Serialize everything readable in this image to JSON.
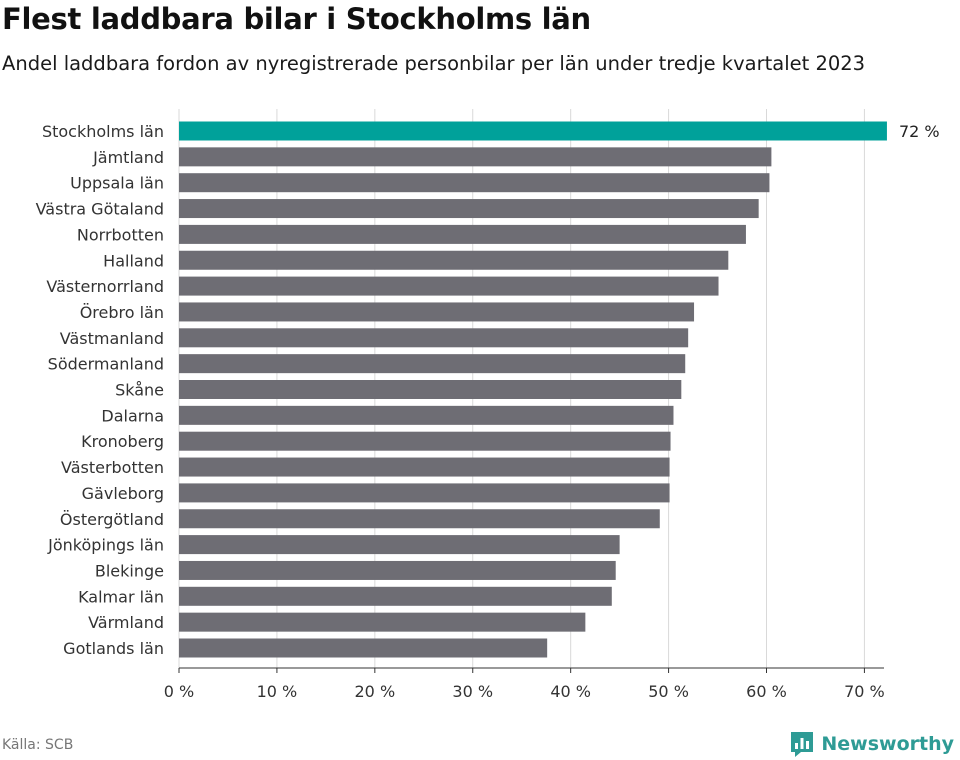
{
  "title": "Flest laddbara bilar i Stockholms län",
  "subtitle": "Andel laddbara fordon av nyregistrerade personbilar per län under tredje kvartalet 2023",
  "source": "Källa: SCB",
  "brand": "Newsworthy",
  "colors": {
    "highlight": "#00a19a",
    "bar": "#6e6d74",
    "grid": "#d9d9d9",
    "brand": "#2e9b95"
  },
  "chart_data": {
    "type": "bar",
    "orientation": "horizontal",
    "title": "Flest laddbara bilar i Stockholms län",
    "xlabel": "",
    "ylabel": "",
    "xlim": [
      0,
      72
    ],
    "ticks": [
      0,
      10,
      20,
      30,
      40,
      50,
      60,
      70
    ],
    "tick_labels": [
      "0 %",
      "10 %",
      "20 %",
      "30 %",
      "40 %",
      "50 %",
      "60 %",
      "70 %"
    ],
    "grid": true,
    "categories": [
      "Stockholms län",
      "Jämtland",
      "Uppsala län",
      "Västra Götaland",
      "Norrbotten",
      "Halland",
      "Västernorrland",
      "Örebro län",
      "Västmanland",
      "Södermanland",
      "Skåne",
      "Dalarna",
      "Kronoberg",
      "Västerbotten",
      "Gävleborg",
      "Östergötland",
      "Jönköpings län",
      "Blekinge",
      "Kalmar län",
      "Värmland",
      "Gotlands län"
    ],
    "values": [
      72.3,
      60.5,
      60.3,
      59.2,
      57.9,
      56.1,
      55.1,
      52.6,
      52.0,
      51.7,
      51.3,
      50.5,
      50.2,
      50.1,
      50.1,
      49.1,
      45.0,
      44.6,
      44.2,
      41.5,
      37.6
    ],
    "highlight_index": 0,
    "data_labels": [
      {
        "index": 0,
        "text": "72 %"
      }
    ]
  }
}
